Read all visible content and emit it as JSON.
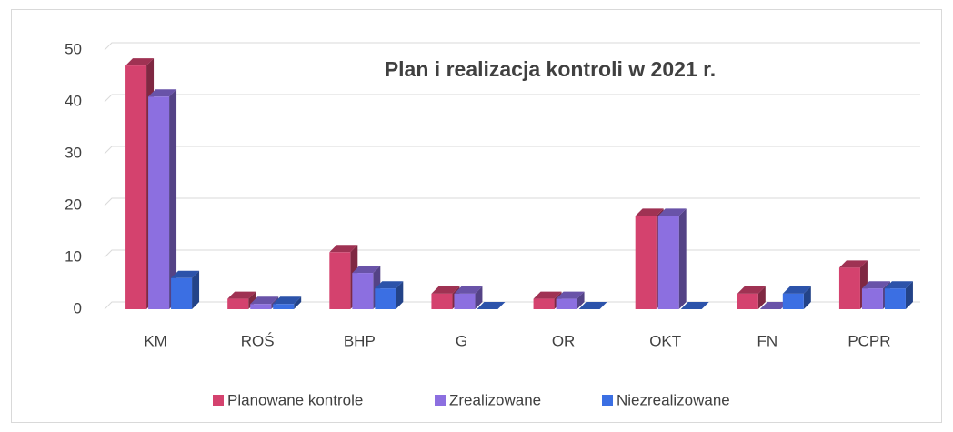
{
  "chart_data": {
    "type": "bar3d",
    "title": "Plan i realizacja kontroli w 2021 r.",
    "categories": [
      "KM",
      "ROŚ",
      "BHP",
      "G",
      "OR",
      "OKT",
      "FN",
      "PCPR"
    ],
    "series": [
      {
        "name": "Planowane kontrole",
        "color": "#d4426e",
        "values": [
          47,
          2,
          11,
          3,
          2,
          18,
          3,
          8
        ]
      },
      {
        "name": "Zrealizowane",
        "color": "#8c6fe0",
        "values": [
          41,
          1,
          7,
          3,
          2,
          18,
          0,
          4
        ]
      },
      {
        "name": "Niezrealizowane",
        "color": "#3b6fe3",
        "values": [
          6,
          1,
          4,
          0,
          0,
          0,
          3,
          4
        ]
      }
    ],
    "ylim": [
      0,
      50
    ],
    "yticks": [
      0,
      10,
      20,
      30,
      40,
      50
    ],
    "grid": true,
    "legend": "bottom"
  }
}
